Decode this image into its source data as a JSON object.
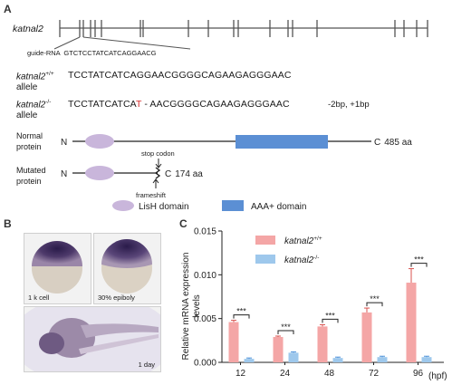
{
  "panels": {
    "a": "A",
    "b": "B",
    "c": "C"
  },
  "gene": {
    "name_prefix": "katnal2",
    "guide_rna": "guide-RNA  GTCTCCTATCATCAGGAACG"
  },
  "alleles": [
    {
      "name": "katnal2",
      "sup": "+/+",
      "suffix": "allele",
      "seq_a": "TCCTATCATCAGGAACGGGGCAGAAGAGGGAAC",
      "seq_red": "",
      "seq_b": "",
      "note": ""
    },
    {
      "name": "katnal2",
      "sup": "-/-",
      "suffix": "allele",
      "seq_a": "TCCTATCATCA",
      "seq_red": "T",
      "seq_b": "- AACGGGGCAGAAGAGGGAAC",
      "note": "-2bp, +1bp"
    }
  ],
  "proteins": {
    "normal": {
      "label_1": "Normal",
      "label_2": "protein",
      "n": "N",
      "c": "C",
      "length": "485 aa"
    },
    "mutated": {
      "label_1": "Mutated",
      "label_2": "protein",
      "n": "N",
      "c": "C",
      "length": "174 aa",
      "stop_codon": "stop codon",
      "frameshift": "frameshift"
    },
    "legend": [
      {
        "name": "LisH domain",
        "color": "#c9b6db",
        "shape": "ellipse"
      },
      {
        "name": "AAA+ domain",
        "color": "#5b8fd4",
        "shape": "rect"
      }
    ]
  },
  "photos": [
    {
      "caption": "1 k cell"
    },
    {
      "caption": "30% epiboly"
    },
    {
      "caption": "1 day"
    }
  ],
  "chart_data": {
    "type": "bar",
    "xlabel": "(hpf)",
    "ylabel_1": "Relative mRNA expression",
    "ylabel_2": "levels",
    "categories": [
      "12",
      "24",
      "48",
      "72",
      "96"
    ],
    "ylim": [
      0,
      0.015
    ],
    "yticks": [
      "0.000",
      "0.005",
      "0.010",
      "0.015"
    ],
    "series": [
      {
        "name": "katnal2",
        "sup": "+/+",
        "color": "#f4a6a6",
        "values": [
          0.0046,
          0.0029,
          0.0041,
          0.0057,
          0.0091
        ],
        "errors": [
          0.0002,
          0.0001,
          0.0002,
          0.0005,
          0.0016
        ]
      },
      {
        "name": "katnal2",
        "sup": "-/-",
        "color": "#9ec8ec",
        "values": [
          0.0004,
          0.0011,
          0.0005,
          0.0006,
          0.0006
        ],
        "errors": [
          0.0001,
          0.0001,
          0.0001,
          0.0001,
          0.0001
        ]
      }
    ],
    "significance": [
      "***",
      "***",
      "***",
      "***",
      "***"
    ]
  }
}
